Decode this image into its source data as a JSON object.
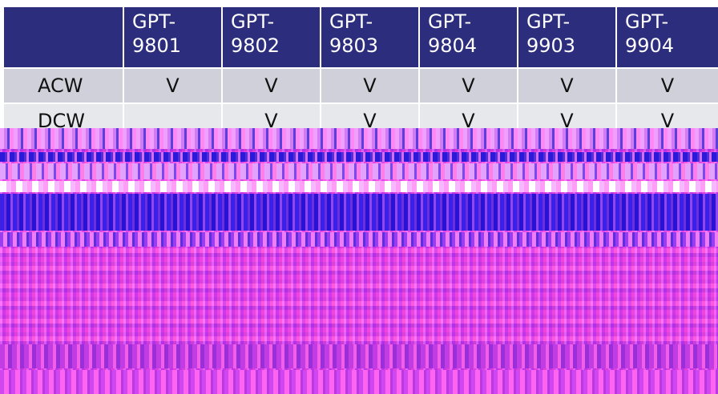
{
  "table": {
    "corner_label": "",
    "columns": [
      {
        "line1": "GPT-",
        "line2": "9801"
      },
      {
        "line1": "GPT-",
        "line2": "9802"
      },
      {
        "line1": "GPT-",
        "line2": "9803"
      },
      {
        "line1": "GPT-",
        "line2": "9804"
      },
      {
        "line1": "GPT-",
        "line2": "9903"
      },
      {
        "line1": "GPT-",
        "line2": "9904"
      }
    ],
    "rows": [
      {
        "label": "ACW",
        "cells": [
          "V",
          "V",
          "V",
          "V",
          "V",
          "V"
        ]
      },
      {
        "label": "DCW",
        "cells": [
          "",
          "V",
          "V",
          "V",
          "V",
          "V"
        ]
      }
    ]
  },
  "colors": {
    "header_bg": "#2c2d7d",
    "row_odd_bg": "#cfd0da",
    "row_even_bg": "#e7e8ec",
    "glitch_primary": "#ff6ef2",
    "glitch_secondary": "#3b21e6"
  }
}
